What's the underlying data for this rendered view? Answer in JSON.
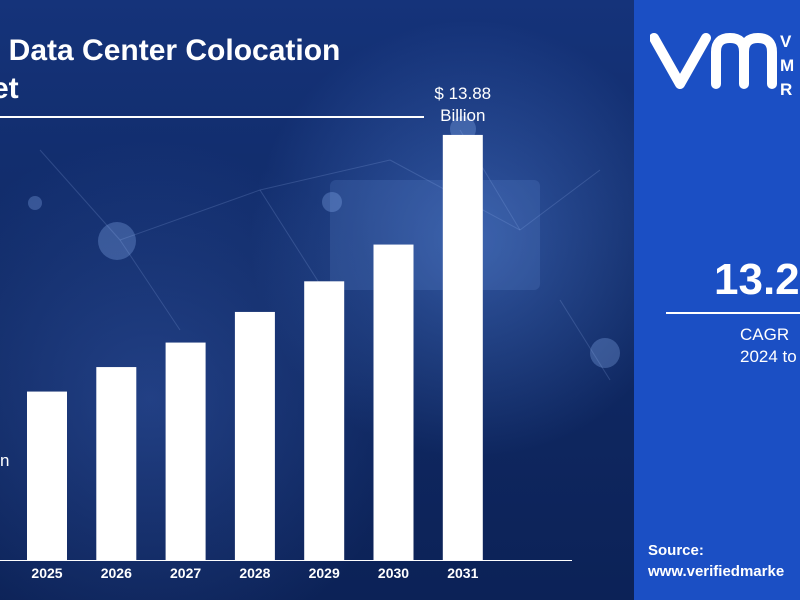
{
  "header": {
    "title_line1": "l Data Center Colocation",
    "title_line2": "et"
  },
  "chart_data": {
    "type": "bar",
    "categories": [
      "2025",
      "2026",
      "2027",
      "2028",
      "2029",
      "2030",
      "2031"
    ],
    "values": [
      5.5,
      6.3,
      7.1,
      8.1,
      9.1,
      10.3,
      13.88
    ],
    "ylim": [
      0,
      16
    ],
    "grid": false,
    "annotations": [
      {
        "category": "2031",
        "lines": [
          "$ 13.88",
          "Billion"
        ]
      }
    ],
    "partial_left_label": "n",
    "colors": {
      "bar": "#ffffff",
      "label": "#ffffff"
    }
  },
  "sidebar": {
    "logo_text": [
      "V",
      "M",
      "R"
    ],
    "cagr_value": "13.2",
    "cagr_label_line1": "CAGR",
    "cagr_label_line2": "2024 to",
    "source_label": "Source:",
    "source_url": "www.verifiedmarke"
  },
  "colors": {
    "left_bg": "#112c6c",
    "right_bg": "#1b4fc4",
    "text": "#ffffff"
  },
  "icons": {
    "logo": "vmr-logo"
  }
}
